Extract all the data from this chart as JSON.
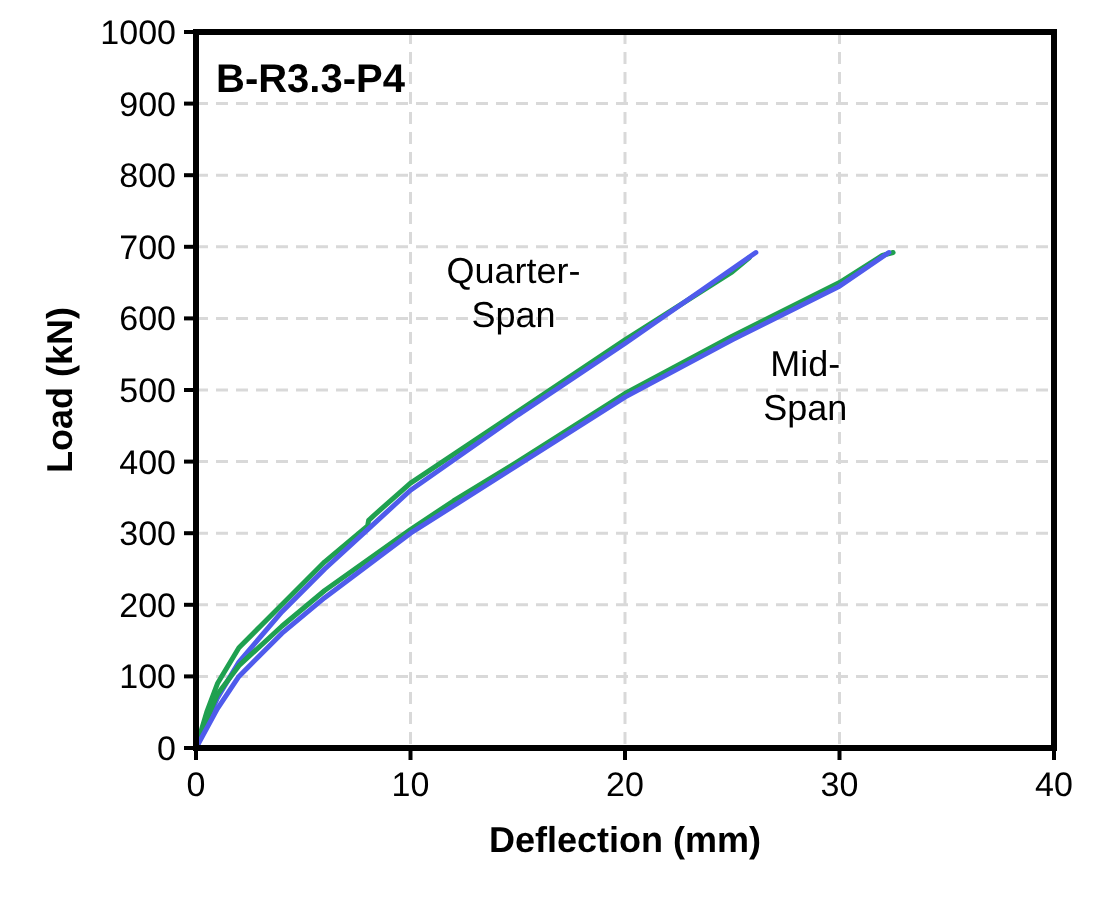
{
  "chart_data": {
    "type": "line",
    "title": "B-R3.3-P4",
    "xlabel": "Deflection (mm)",
    "ylabel": "Load (kN)",
    "xlim": [
      0,
      40
    ],
    "xticks": [
      0,
      10,
      20,
      30,
      40
    ],
    "ylim": [
      0,
      1000
    ],
    "yticks": [
      0,
      100,
      200,
      300,
      400,
      500,
      600,
      700,
      800,
      900,
      1000
    ],
    "grid": true,
    "marker": "none",
    "line_style": "solid",
    "annotations": [
      "Quarter-Span",
      "Mid-Span"
    ],
    "series": [
      {
        "color": "#1fa050",
        "x": [
          0,
          0.5,
          1,
          2,
          4,
          6,
          8,
          8.05,
          8.3,
          10,
          15,
          20,
          25,
          25.8
        ],
        "values": [
          0,
          50,
          90,
          140,
          200,
          260,
          310,
          318,
          325,
          370,
          470,
          570,
          665,
          685
        ]
      },
      {
        "color": "#4f5bec",
        "x": [
          0,
          1,
          2,
          4,
          6,
          8,
          10,
          15,
          20,
          26.1
        ],
        "values": [
          0,
          70,
          120,
          190,
          250,
          305,
          360,
          465,
          565,
          692
        ]
      },
      {
        "color": "#1fa050",
        "x": [
          0,
          0.5,
          1,
          2,
          4,
          6,
          10,
          12,
          15,
          20,
          25,
          30,
          32,
          32.5
        ],
        "values": [
          0,
          40,
          75,
          115,
          170,
          220,
          305,
          345,
          400,
          495,
          575,
          650,
          688,
          692
        ]
      },
      {
        "color": "#4f5bec",
        "x": [
          0,
          1,
          2,
          4,
          6,
          10,
          15,
          20,
          25,
          30,
          32.3
        ],
        "values": [
          0,
          55,
          100,
          160,
          210,
          300,
          395,
          490,
          570,
          645,
          692
        ]
      }
    ]
  }
}
